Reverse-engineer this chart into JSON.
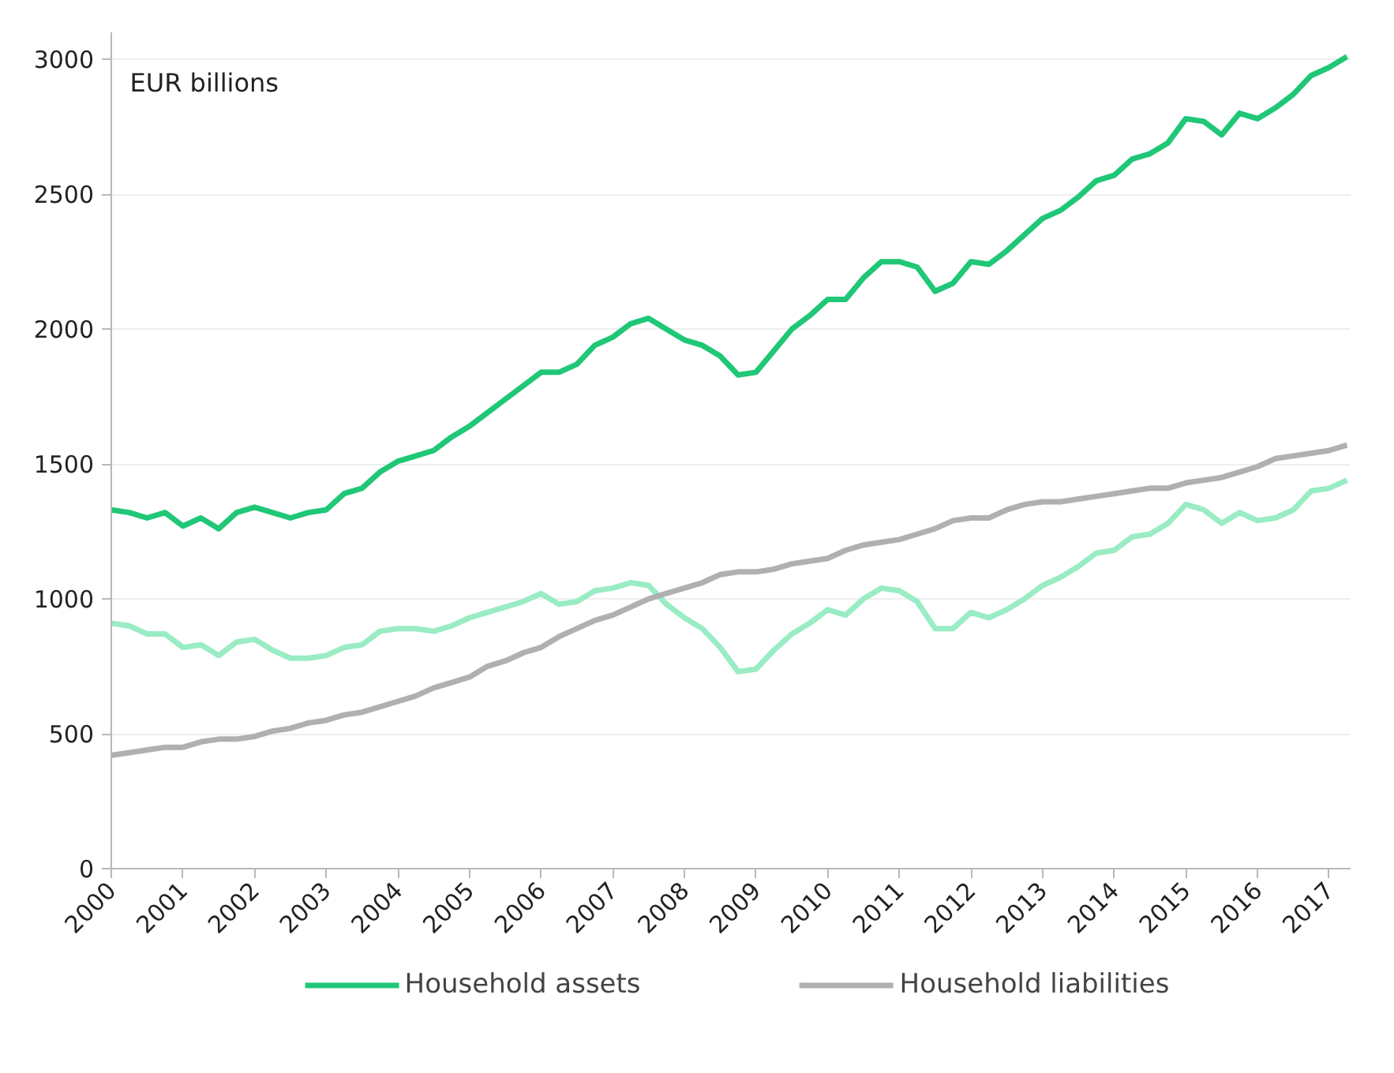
{
  "chart_data": {
    "type": "line",
    "annotations": [
      "EUR billions"
    ],
    "x": [
      2000,
      2000.25,
      2000.5,
      2000.75,
      2001,
      2001.25,
      2001.5,
      2001.75,
      2002,
      2002.25,
      2002.5,
      2002.75,
      2003,
      2003.25,
      2003.5,
      2003.75,
      2004,
      2004.25,
      2004.5,
      2004.75,
      2005,
      2005.25,
      2005.5,
      2005.75,
      2006,
      2006.25,
      2006.5,
      2006.75,
      2007,
      2007.25,
      2007.5,
      2007.75,
      2008,
      2008.25,
      2008.5,
      2008.75,
      2009,
      2009.25,
      2009.5,
      2009.75,
      2010,
      2010.25,
      2010.5,
      2010.75,
      2011,
      2011.25,
      2011.5,
      2011.75,
      2012,
      2012.25,
      2012.5,
      2012.75,
      2013,
      2013.25,
      2013.5,
      2013.75,
      2014,
      2014.25,
      2014.5,
      2014.75,
      2015,
      2015.25,
      2015.5,
      2015.75,
      2016,
      2016.25,
      2016.5,
      2016.75,
      2017,
      2017.25
    ],
    "series": [
      {
        "name": "Household assets",
        "color": "#1fc777",
        "values": [
          1330,
          1320,
          1300,
          1320,
          1270,
          1300,
          1260,
          1320,
          1340,
          1320,
          1300,
          1320,
          1330,
          1390,
          1410,
          1470,
          1510,
          1530,
          1550,
          1600,
          1640,
          1690,
          1740,
          1790,
          1840,
          1840,
          1870,
          1940,
          1970,
          2020,
          2040,
          2000,
          1960,
          1940,
          1900,
          1830,
          1840,
          1920,
          2000,
          2050,
          2110,
          2110,
          2190,
          2250,
          2250,
          2230,
          2140,
          2170,
          2250,
          2240,
          2290,
          2350,
          2410,
          2440,
          2490,
          2550,
          2570,
          2630,
          2650,
          2690,
          2780,
          2770,
          2720,
          2800,
          2780,
          2820,
          2870,
          2940,
          2970,
          3010
        ]
      },
      {
        "color": "#99ecc3",
        "values": [
          910,
          900,
          870,
          870,
          820,
          830,
          790,
          840,
          850,
          810,
          780,
          780,
          790,
          820,
          830,
          880,
          890,
          890,
          880,
          900,
          930,
          950,
          970,
          990,
          1020,
          980,
          990,
          1030,
          1040,
          1060,
          1050,
          980,
          930,
          890,
          820,
          730,
          740,
          810,
          870,
          910,
          960,
          940,
          1000,
          1040,
          1030,
          990,
          890,
          890,
          950,
          930,
          960,
          1000,
          1050,
          1080,
          1120,
          1170,
          1180,
          1230,
          1240,
          1280,
          1350,
          1330,
          1280,
          1320,
          1290,
          1300,
          1330,
          1400,
          1410,
          1440
        ]
      },
      {
        "name": "Household liabilities",
        "color": "#b0b0b0",
        "values": [
          420,
          430,
          440,
          450,
          450,
          470,
          480,
          480,
          490,
          510,
          520,
          540,
          550,
          570,
          580,
          600,
          620,
          640,
          670,
          690,
          710,
          750,
          770,
          800,
          820,
          860,
          890,
          920,
          940,
          970,
          1000,
          1020,
          1040,
          1060,
          1090,
          1100,
          1100,
          1110,
          1130,
          1140,
          1150,
          1180,
          1200,
          1210,
          1220,
          1240,
          1260,
          1290,
          1300,
          1300,
          1330,
          1350,
          1360,
          1360,
          1370,
          1380,
          1390,
          1400,
          1410,
          1410,
          1430,
          1440,
          1450,
          1470,
          1490,
          1520,
          1530,
          1540,
          1550,
          1570
        ]
      }
    ],
    "xlim": [
      2000,
      2017.3
    ],
    "xticks": [
      2000,
      2001,
      2002,
      2003,
      2004,
      2005,
      2006,
      2007,
      2008,
      2009,
      2010,
      2011,
      2012,
      2013,
      2014,
      2015,
      2016,
      2017
    ],
    "ylim": [
      0,
      3100
    ],
    "yticks": [
      0,
      500,
      1000,
      1500,
      2000,
      2500,
      3000
    ],
    "grid": "y",
    "legend": "bottom",
    "marker": "none",
    "line_style": "solid"
  }
}
